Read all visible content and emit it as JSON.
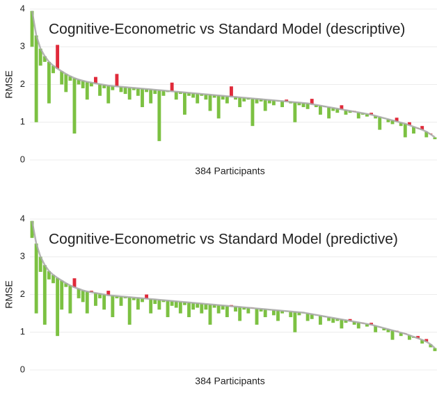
{
  "chart_data": [
    {
      "type": "diffbar",
      "title": "Cognitive-Econometric vs Standard Model (descriptive)",
      "y_label": "RMSE",
      "x_label": "384 Participants",
      "ylim": [
        0,
        4
      ],
      "yticks": [
        0,
        1,
        2,
        3,
        4
      ],
      "grid": true,
      "worse_color": "#e02a3a",
      "series": [
        {
          "color": "#a8a8a8",
          "values": [
            3.95,
            3.3,
            2.95,
            2.75,
            2.6,
            2.5,
            2.42,
            2.35,
            2.28,
            2.22,
            2.17,
            2.13,
            2.1,
            2.07,
            2.05,
            2.03,
            2.01,
            1.99,
            1.97,
            1.96,
            1.95,
            1.94,
            1.93,
            1.92,
            1.91,
            1.9,
            1.89,
            1.88,
            1.87,
            1.86,
            1.85,
            1.84,
            1.83,
            1.82,
            1.81,
            1.8,
            1.79,
            1.78,
            1.77,
            1.76,
            1.75,
            1.74,
            1.73,
            1.72,
            1.71,
            1.7,
            1.69,
            1.68,
            1.67,
            1.66,
            1.65,
            1.64,
            1.63,
            1.62,
            1.61,
            1.6,
            1.59,
            1.58,
            1.57,
            1.56,
            1.55,
            1.54,
            1.53,
            1.52,
            1.51,
            1.5,
            1.48,
            1.46,
            1.44,
            1.42,
            1.4,
            1.38,
            1.36,
            1.34,
            1.32,
            1.3,
            1.28,
            1.26,
            1.24,
            1.22,
            1.2,
            1.17,
            1.14,
            1.11,
            1.08,
            1.05,
            1.02,
            0.99,
            0.96,
            0.92,
            0.88,
            0.84,
            0.8,
            0.75,
            0.68,
            0.6
          ]
        },
        {
          "color": "#7cc142",
          "values": [
            3.0,
            1.0,
            2.5,
            2.6,
            1.5,
            2.3,
            3.05,
            2.0,
            1.8,
            2.1,
            0.7,
            2.0,
            1.9,
            1.6,
            1.95,
            2.2,
            1.7,
            1.9,
            1.5,
            1.85,
            2.28,
            1.8,
            1.75,
            1.6,
            1.85,
            1.7,
            1.4,
            1.8,
            1.5,
            1.75,
            0.5,
            1.7,
            1.8,
            2.05,
            1.6,
            1.75,
            1.2,
            1.7,
            1.65,
            1.5,
            1.7,
            1.6,
            1.3,
            1.65,
            1.1,
            1.6,
            1.5,
            1.95,
            1.6,
            1.4,
            1.55,
            1.6,
            0.9,
            1.5,
            1.55,
            1.3,
            1.5,
            1.45,
            1.55,
            1.4,
            1.6,
            1.5,
            1.0,
            1.45,
            1.4,
            1.35,
            1.62,
            1.4,
            1.2,
            1.4,
            1.1,
            1.3,
            1.25,
            1.45,
            1.2,
            1.25,
            1.3,
            1.1,
            1.2,
            1.15,
            1.25,
            1.1,
            0.8,
            1.1,
            1.0,
            0.95,
            1.12,
            0.9,
            0.6,
            1.0,
            0.7,
            0.85,
            0.9,
            0.6,
            0.7,
            0.55
          ]
        }
      ]
    },
    {
      "type": "diffbar",
      "title": "Cognitive-Econometric vs Standard Model (predictive)",
      "y_label": "RMSE",
      "x_label": "384 Participants",
      "ylim": [
        0,
        4
      ],
      "yticks": [
        0,
        1,
        2,
        3,
        4
      ],
      "grid": true,
      "worse_color": "#e02a3a",
      "series": [
        {
          "color": "#a8a8a8",
          "values": [
            3.95,
            3.35,
            3.0,
            2.78,
            2.62,
            2.52,
            2.44,
            2.37,
            2.3,
            2.24,
            2.19,
            2.15,
            2.11,
            2.08,
            2.06,
            2.04,
            2.02,
            2.0,
            1.98,
            1.97,
            1.96,
            1.95,
            1.94,
            1.93,
            1.92,
            1.91,
            1.9,
            1.89,
            1.88,
            1.87,
            1.86,
            1.85,
            1.84,
            1.83,
            1.82,
            1.81,
            1.8,
            1.79,
            1.78,
            1.77,
            1.76,
            1.75,
            1.74,
            1.73,
            1.72,
            1.71,
            1.7,
            1.69,
            1.68,
            1.67,
            1.66,
            1.65,
            1.64,
            1.63,
            1.62,
            1.61,
            1.6,
            1.59,
            1.58,
            1.57,
            1.56,
            1.55,
            1.54,
            1.53,
            1.52,
            1.5,
            1.48,
            1.46,
            1.44,
            1.42,
            1.4,
            1.38,
            1.36,
            1.34,
            1.32,
            1.3,
            1.28,
            1.26,
            1.24,
            1.22,
            1.2,
            1.17,
            1.14,
            1.11,
            1.08,
            1.05,
            1.02,
            0.99,
            0.96,
            0.92,
            0.88,
            0.84,
            0.8,
            0.75,
            0.68,
            0.58
          ]
        },
        {
          "color": "#7cc142",
          "values": [
            3.5,
            1.5,
            2.6,
            1.2,
            2.4,
            2.3,
            0.9,
            1.6,
            2.2,
            1.5,
            2.43,
            1.9,
            1.8,
            1.5,
            2.1,
            1.7,
            1.9,
            1.6,
            2.1,
            1.4,
            1.9,
            1.7,
            1.9,
            1.2,
            1.85,
            1.6,
            1.8,
            2.0,
            1.5,
            1.75,
            1.6,
            1.8,
            1.4,
            1.7,
            1.65,
            1.5,
            1.72,
            1.4,
            1.6,
            1.65,
            1.5,
            1.6,
            1.2,
            1.65,
            1.5,
            1.6,
            1.4,
            1.72,
            1.55,
            1.3,
            1.6,
            1.5,
            1.65,
            1.2,
            1.55,
            1.4,
            1.6,
            1.45,
            1.3,
            1.5,
            1.55,
            1.4,
            1.0,
            1.45,
            1.5,
            1.3,
            1.35,
            1.45,
            1.2,
            1.4,
            1.3,
            1.25,
            1.3,
            1.1,
            1.25,
            1.35,
            1.2,
            1.1,
            1.25,
            1.15,
            1.25,
            1.0,
            1.14,
            1.05,
            1.0,
            0.8,
            1.04,
            0.9,
            0.97,
            0.8,
            0.85,
            0.9,
            0.7,
            0.82,
            0.6,
            0.5
          ]
        }
      ]
    }
  ]
}
